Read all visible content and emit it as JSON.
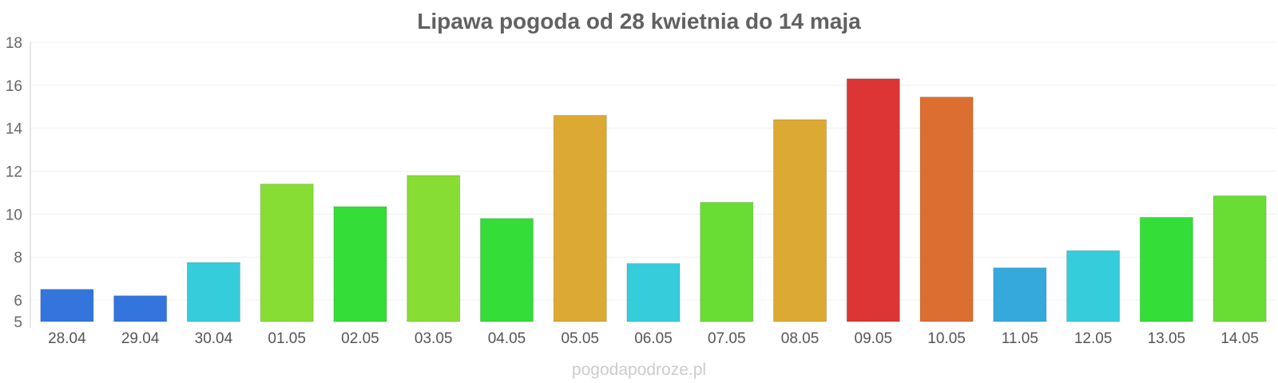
{
  "chart_data": {
    "type": "bar",
    "title": "Lipawa pogoda od 28 kwietnia do 14 maja",
    "xlabel": "",
    "ylabel": "",
    "ylim": [
      5,
      18
    ],
    "yticks": [
      5,
      6,
      8,
      10,
      12,
      14,
      16,
      18
    ],
    "grid": true,
    "categories": [
      "28.04",
      "29.04",
      "30.04",
      "01.05",
      "02.05",
      "03.05",
      "04.05",
      "05.05",
      "06.05",
      "07.05",
      "08.05",
      "09.05",
      "10.05",
      "11.05",
      "12.05",
      "13.05",
      "14.05"
    ],
    "values": [
      6.5,
      6.2,
      7.75,
      11.4,
      10.35,
      11.8,
      9.8,
      14.6,
      7.7,
      10.55,
      14.4,
      16.3,
      15.45,
      7.5,
      8.3,
      9.85,
      10.85
    ],
    "colors": [
      "#3375dd",
      "#3375dd",
      "#35cddc",
      "#88dd35",
      "#35dd38",
      "#88dd35",
      "#35dd38",
      "#dcaa32",
      "#35cddc",
      "#6add35",
      "#dcaa32",
      "#dd3535",
      "#dd6e32",
      "#35a8dc",
      "#35cddc",
      "#35dd38",
      "#6add35"
    ]
  },
  "watermark": "pogodapodroze.pl"
}
